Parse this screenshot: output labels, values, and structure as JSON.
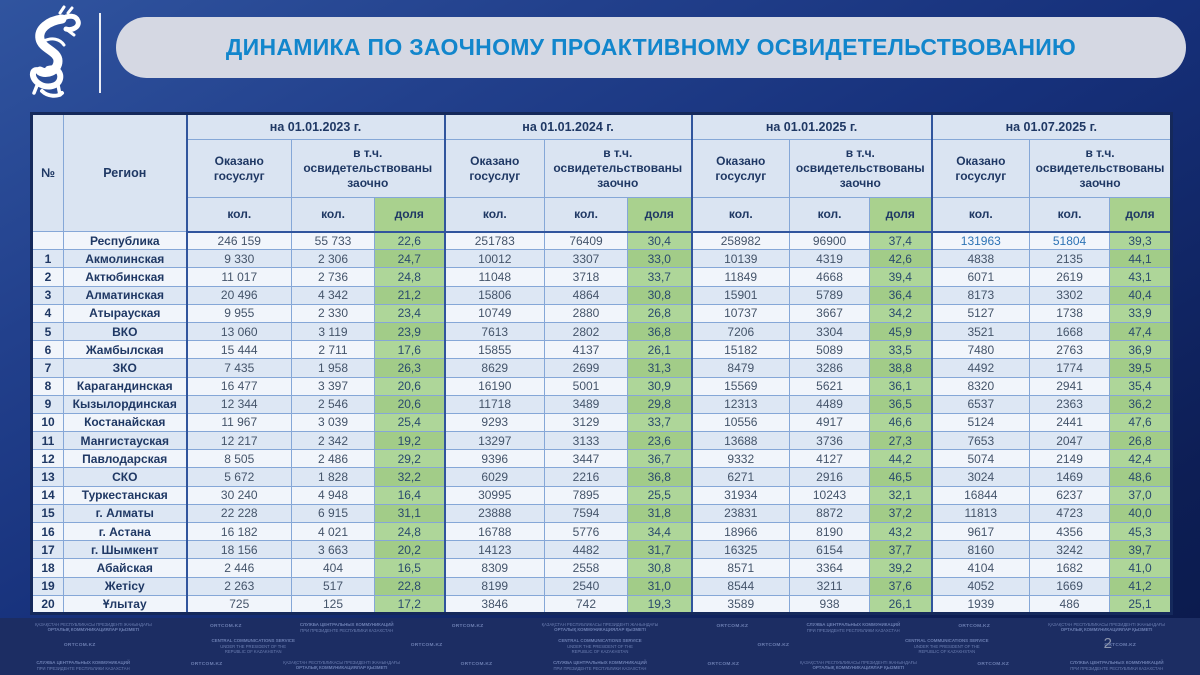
{
  "header": {
    "title": "ДИНАМИКА ПО ЗАОЧНОМУ ПРОАКТИВНОМУ ОСВИДЕТЕЛЬСТВОВАНИЮ",
    "logo_icon": "snow-leopard-emblem"
  },
  "colors": {
    "title_accent": "#1286cc",
    "table_header_blue": "#dae4f2",
    "share_green": "#a9d18e",
    "background_navy": "#16307a"
  },
  "table": {
    "headers": {
      "num": "№",
      "region": "Регион",
      "groups": [
        {
          "date": "на 01.01.2023 г."
        },
        {
          "date": "на 01.01.2024 г."
        },
        {
          "date": "на 01.01.2025 г."
        },
        {
          "date": "на 01.07.2025 г."
        }
      ],
      "served_label": "Оказано госуслуг",
      "remote_label": "в т.ч. освидетельствованы заочно",
      "count_label": "кол.",
      "share_label": "доля"
    },
    "rows": [
      {
        "num": "",
        "region": "Республика",
        "values": [
          "246 159",
          "55 733",
          "22,6",
          "251783",
          "76409",
          "30,4",
          "258982",
          "96900",
          "37,4",
          "131963",
          "51804",
          "39,3"
        ]
      },
      {
        "num": "1",
        "region": "Акмолинская",
        "values": [
          "9 330",
          "2 306",
          "24,7",
          "10012",
          "3307",
          "33,0",
          "10139",
          "4319",
          "42,6",
          "4838",
          "2135",
          "44,1"
        ]
      },
      {
        "num": "2",
        "region": "Актюбинская",
        "values": [
          "11 017",
          "2 736",
          "24,8",
          "11048",
          "3718",
          "33,7",
          "11849",
          "4668",
          "39,4",
          "6071",
          "2619",
          "43,1"
        ]
      },
      {
        "num": "3",
        "region": "Алматинская",
        "values": [
          "20 496",
          "4 342",
          "21,2",
          "15806",
          "4864",
          "30,8",
          "15901",
          "5789",
          "36,4",
          "8173",
          "3302",
          "40,4"
        ]
      },
      {
        "num": "4",
        "region": "Атырауская",
        "values": [
          "9 955",
          "2 330",
          "23,4",
          "10749",
          "2880",
          "26,8",
          "10737",
          "3667",
          "34,2",
          "5127",
          "1738",
          "33,9"
        ]
      },
      {
        "num": "5",
        "region": "ВКО",
        "values": [
          "13 060",
          "3 119",
          "23,9",
          "7613",
          "2802",
          "36,8",
          "7206",
          "3304",
          "45,9",
          "3521",
          "1668",
          "47,4"
        ]
      },
      {
        "num": "6",
        "region": "Жамбылская",
        "values": [
          "15 444",
          "2 711",
          "17,6",
          "15855",
          "4137",
          "26,1",
          "15182",
          "5089",
          "33,5",
          "7480",
          "2763",
          "36,9"
        ]
      },
      {
        "num": "7",
        "region": "ЗКО",
        "values": [
          "7 435",
          "1 958",
          "26,3",
          "8629",
          "2699",
          "31,3",
          "8479",
          "3286",
          "38,8",
          "4492",
          "1774",
          "39,5"
        ]
      },
      {
        "num": "8",
        "region": "Карагандинская",
        "values": [
          "16 477",
          "3 397",
          "20,6",
          "16190",
          "5001",
          "30,9",
          "15569",
          "5621",
          "36,1",
          "8320",
          "2941",
          "35,4"
        ]
      },
      {
        "num": "9",
        "region": "Кызылординская",
        "values": [
          "12 344",
          "2 546",
          "20,6",
          "11718",
          "3489",
          "29,8",
          "12313",
          "4489",
          "36,5",
          "6537",
          "2363",
          "36,2"
        ]
      },
      {
        "num": "10",
        "region": "Костанайская",
        "values": [
          "11 967",
          "3 039",
          "25,4",
          "9293",
          "3129",
          "33,7",
          "10556",
          "4917",
          "46,6",
          "5124",
          "2441",
          "47,6"
        ]
      },
      {
        "num": "11",
        "region": "Мангистауская",
        "values": [
          "12 217",
          "2 342",
          "19,2",
          "13297",
          "3133",
          "23,6",
          "13688",
          "3736",
          "27,3",
          "7653",
          "2047",
          "26,8"
        ]
      },
      {
        "num": "12",
        "region": "Павлодарская",
        "values": [
          "8 505",
          "2 486",
          "29,2",
          "9396",
          "3447",
          "36,7",
          "9332",
          "4127",
          "44,2",
          "5074",
          "2149",
          "42,4"
        ]
      },
      {
        "num": "13",
        "region": "СКО",
        "values": [
          "5 672",
          "1 828",
          "32,2",
          "6029",
          "2216",
          "36,8",
          "6271",
          "2916",
          "46,5",
          "3024",
          "1469",
          "48,6"
        ]
      },
      {
        "num": "14",
        "region": "Туркестанская",
        "values": [
          "30 240",
          "4 948",
          "16,4",
          "30995",
          "7895",
          "25,5",
          "31934",
          "10243",
          "32,1",
          "16844",
          "6237",
          "37,0"
        ]
      },
      {
        "num": "15",
        "region": "г. Алматы",
        "values": [
          "22 228",
          "6 915",
          "31,1",
          "23888",
          "7594",
          "31,8",
          "23831",
          "8872",
          "37,2",
          "11813",
          "4723",
          "40,0"
        ]
      },
      {
        "num": "16",
        "region": "г. Астана",
        "values": [
          "16 182",
          "4 021",
          "24,8",
          "16788",
          "5776",
          "34,4",
          "18966",
          "8190",
          "43,2",
          "9617",
          "4356",
          "45,3"
        ]
      },
      {
        "num": "17",
        "region": "г. Шымкент",
        "values": [
          "18 156",
          "3 663",
          "20,2",
          "14123",
          "4482",
          "31,7",
          "16325",
          "6154",
          "37,7",
          "8160",
          "3242",
          "39,7"
        ]
      },
      {
        "num": "18",
        "region": "Абайская",
        "values": [
          "2 446",
          "404",
          "16,5",
          "8309",
          "2558",
          "30,8",
          "8571",
          "3364",
          "39,2",
          "4104",
          "1682",
          "41,0"
        ]
      },
      {
        "num": "19",
        "region": "Жетісу",
        "values": [
          "2 263",
          "517",
          "22,8",
          "8199",
          "2540",
          "31,0",
          "8544",
          "3211",
          "37,6",
          "4052",
          "1669",
          "41,2"
        ]
      },
      {
        "num": "20",
        "region": "Ұлытау",
        "values": [
          "725",
          "125",
          "17,2",
          "3846",
          "742",
          "19,3",
          "3589",
          "938",
          "26,1",
          "1939",
          "486",
          "25,1"
        ]
      }
    ]
  },
  "footer": {
    "page_number": "2",
    "watermarks": {
      "kz": [
        "ҚАЗАҚСТАН РЕСПУБЛИКАСЫ ПРЕЗИДЕНТІ ЖАНЫНДАҒЫ",
        "ОРТАЛЫҚ КОММУНИКАЦИЯЛАР ҚЫЗМЕТІ"
      ],
      "ru": [
        "СЛУЖБА ЦЕНТРАЛЬНЫХ КОММУНИКАЦИЙ",
        "ПРИ ПРЕЗИДЕНТЕ РЕСПУБЛИКИ КАЗАХСТАН"
      ],
      "en": [
        "CENTRAL COMMUNICATIONS SERVICE",
        "UNDER THE PRESIDENT OF THE",
        "REPUBLIC OF KAZAKHSTAN"
      ],
      "url": "ORTCOM.KZ"
    },
    "pattern": [
      [
        "kz",
        "url",
        "ru",
        "url",
        "kz",
        "url",
        "ru",
        "url",
        "kz"
      ],
      [
        "url",
        "en",
        "url",
        "en",
        "url",
        "en",
        "url"
      ],
      [
        "ru",
        "url",
        "kz",
        "url",
        "ru",
        "url",
        "kz",
        "url",
        "ru"
      ]
    ]
  }
}
